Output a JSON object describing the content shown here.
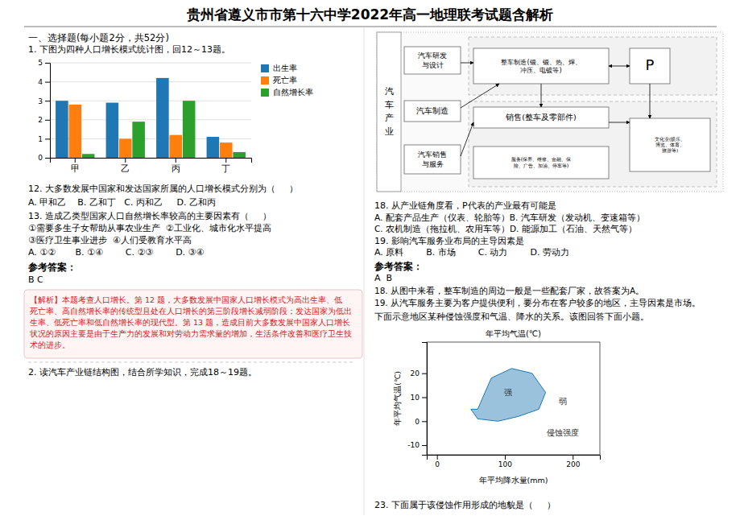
{
  "title": "贵州省遵义市市第十六中学2022年高一地理联考试题含解析",
  "annotations": [
    "一、选择题(每小题2分，共52分)",
    "1. 下图为四种人口增长模式统计图，回12～13题。",
    "12. 大多数发展中国家和发达国家所属的人口增长模式分别为（     ）",
    "A. 甲和乙    B. 乙和丁   C. 丙和乙     D. 乙和丙",
    "13. 造成乙类型国家人口自然增长率较高的主要因素有（     ）",
    "①需要多生子女帮助从事农业生产  ②工业化、城市化水平提高",
    "③医疗卫生事业进步  ④人们受教育水平高",
    "A. ①②       B. ①④        C. ②③        D. ③④",
    "参考答案：",
    "B C",
    "【解析】本题考查人口增长。第 12 题，大多数发展中国家人口增长模式为高出生率、低",
    "死亡率、高自然增长率的传统型且处在人口增长的第三阶段增长减弱阶段；发达国家为低出",
    "生率、低死亡率和低自然增长率的现代型。第 13 题，造成目前大多数发展中国家人口增长",
    "状况的原因主要是由于生产力的发展和对劳动力需求量的增加，生活条件改善和医疗卫生技",
    "术的进步。",
    "2. 读汽车产业链结构图，结合所学知识，完成18～19题。",
    "汽\n车\n产\n业",
    "汽车研发\n与设计",
    "汽车制造",
    "汽车销售\n与服务",
    "整车制造(锻、锻、热、焊、\n冲压、电镀等)",
    "P",
    "销售(整车及零部件)",
    "服务(保养、维修、金融、保\n险、广告、加油、停车等)",
    "文化业(娱乐、\n博览、体育、\n旅游等)",
    "18. 从产业链角度看，P代表的产业最有可能是",
    "A. 配套产品生产（仪表、轮胎等）B. 汽车研发（发动机、变速箱等）",
    "C. 农机制造（拖拉机、农用车等）D. 能源加工（石油、天然气等）",
    "19. 影响汽车服务业布局的主导因素是",
    "A. 原料        B. 市场        C. 动力        D. 劳动力",
    "参考答案：",
    "A  B",
    "18. 从图中来看，整车制造的周边一般是一些配套厂家，故答案为A。",
    "19. 从汽车服务主要为客户提供便利，要分布在客户较多的地区，主导因素是市场。",
    "下面示意地区某种侵蚀强度和气温、降水的关系。该图回答下面小题。",
    "23. 下面属于该侵蚀作用形成的地貌是（     ）"
  ],
  "chart_data": [
    {
      "type": "bar",
      "categories": [
        "甲",
        "乙",
        "丙",
        "丁"
      ],
      "series": [
        {
          "name": "出生率",
          "values": [
            3.0,
            2.9,
            4.2,
            1.1
          ]
        },
        {
          "name": "死亡率",
          "values": [
            2.8,
            1.0,
            1.2,
            0.8
          ]
        },
        {
          "name": "自然增长率",
          "values": [
            0.2,
            1.9,
            3.0,
            0.3
          ]
        }
      ],
      "ylim": [
        0,
        5
      ],
      "yticks": [
        0,
        1,
        2,
        3,
        4,
        5
      ],
      "grid": true,
      "legend": "upper right"
    },
    {
      "type": "polygon",
      "title": "年平均气温(℃)",
      "x_label": "年平均降水量(mm)",
      "y_label": "年平均气温(℃)",
      "x": [
        60,
        80,
        110,
        140,
        160,
        150,
        120,
        90,
        60,
        50,
        55,
        60
      ],
      "values": [
        5,
        18,
        22,
        20,
        12,
        5,
        2,
        0,
        1,
        5,
        5,
        5
      ],
      "xlim": [
        -15,
        240
      ],
      "ylim": [
        -14,
        33
      ],
      "xticks": [
        0,
        100,
        200
      ],
      "yticks": [
        -10,
        0,
        10,
        20
      ],
      "annotations": [
        {
          "text": "强",
          "x": 105,
          "y": 12
        },
        {
          "text": "弱",
          "x": 185,
          "y": 8
        },
        {
          "text": "侵蚀强度",
          "x": 185,
          "y": -5
        }
      ]
    }
  ]
}
